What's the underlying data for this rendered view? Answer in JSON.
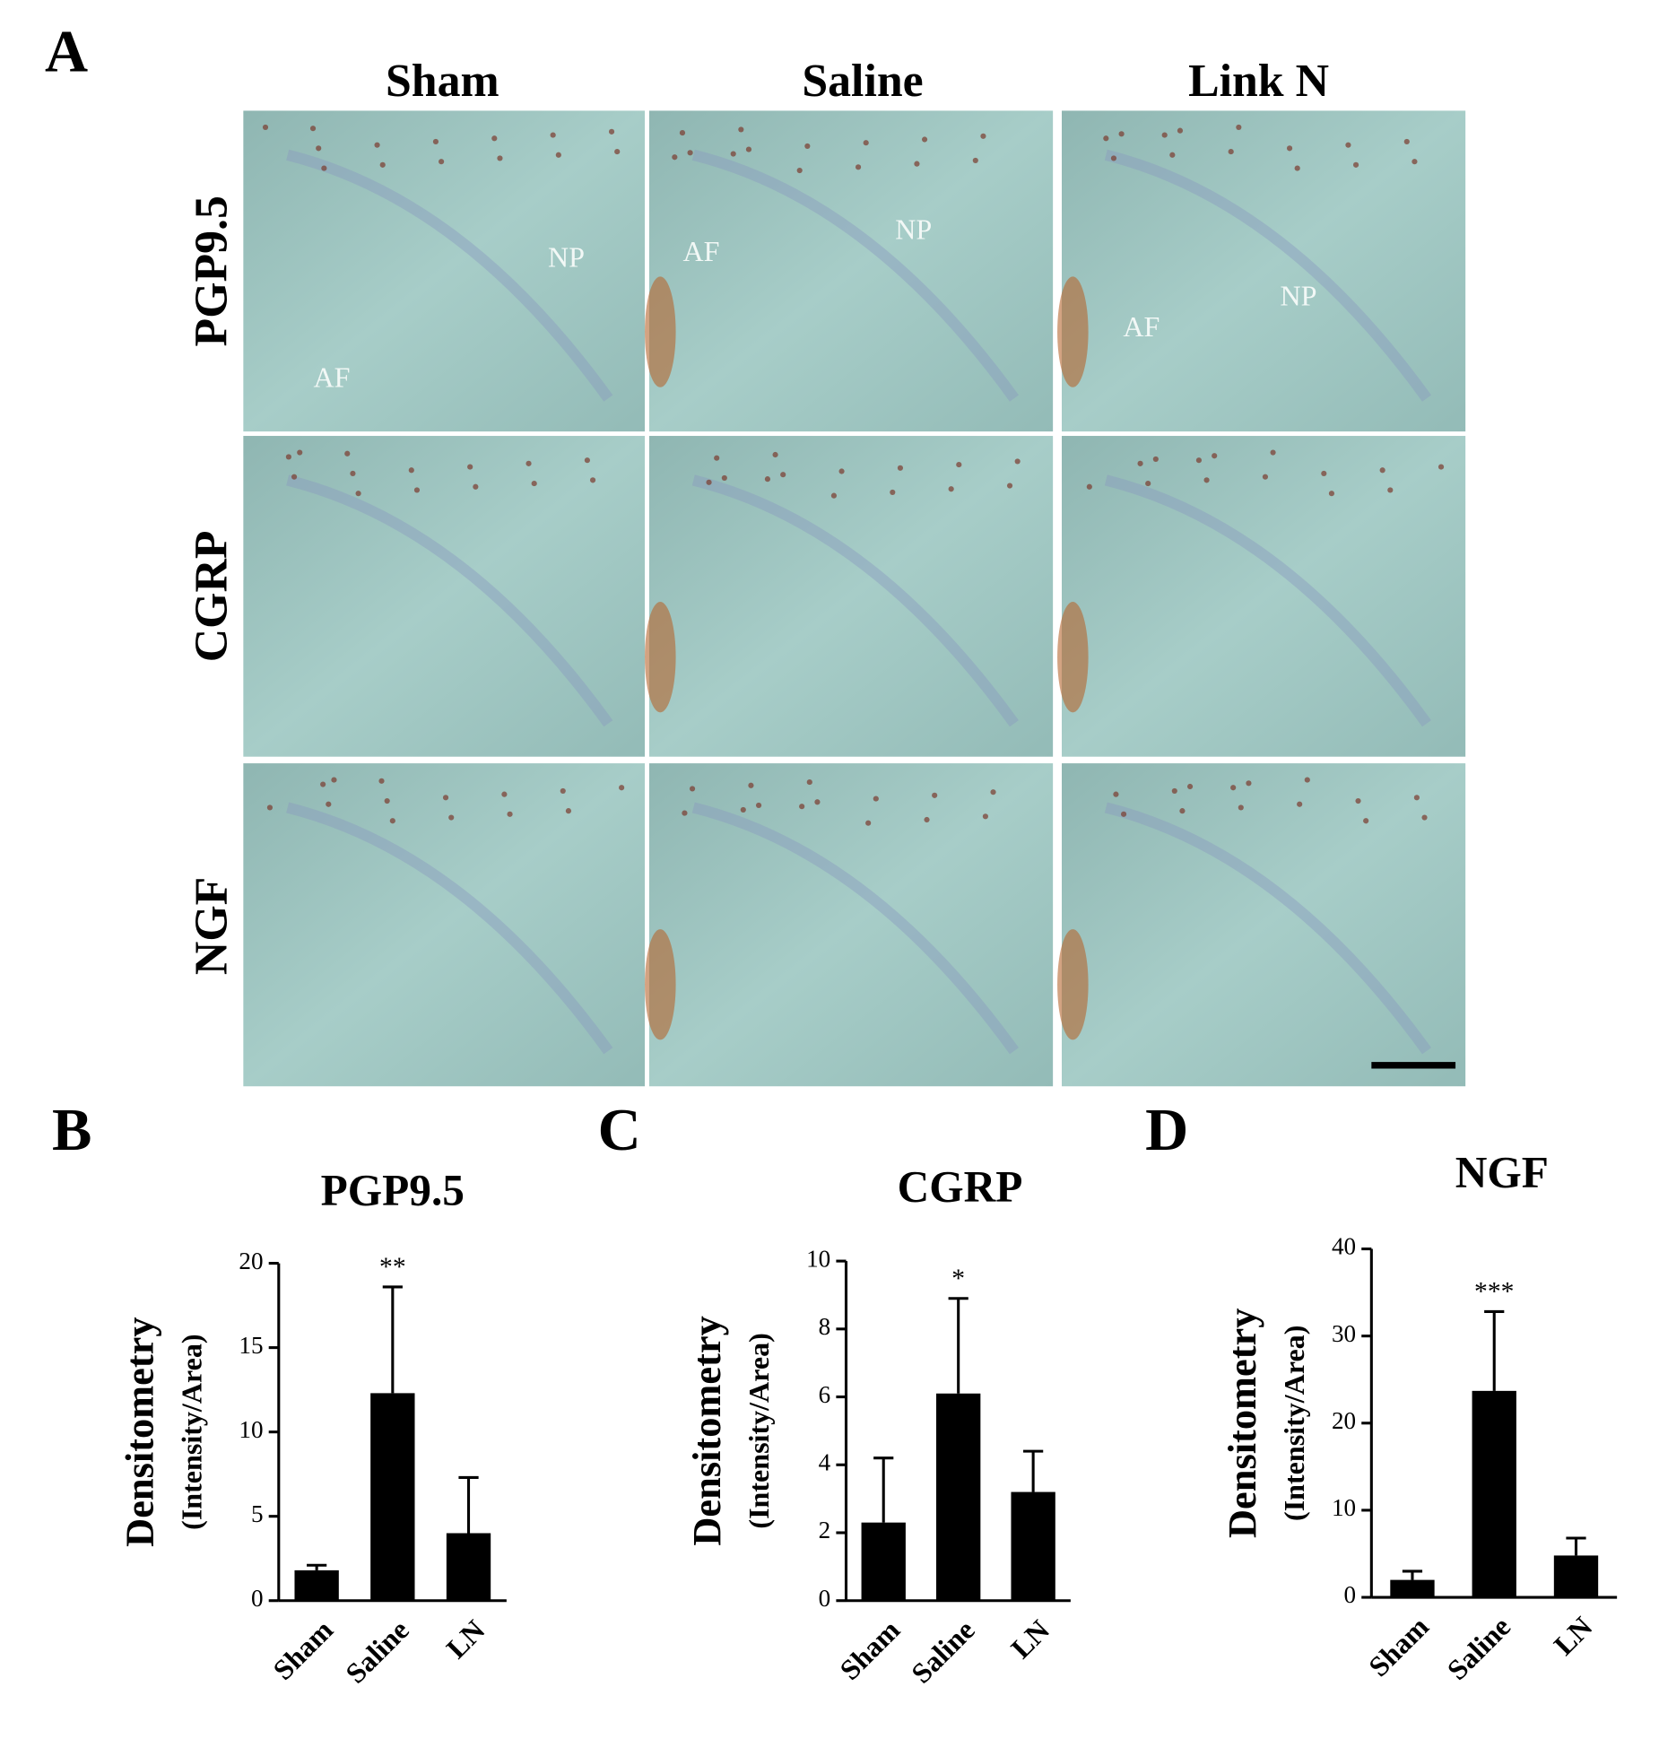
{
  "panel_a": {
    "letter": "A",
    "columns": [
      "Sham",
      "Saline",
      "Link N"
    ],
    "rows": [
      "PGP9.5",
      "CGRP",
      "NGF"
    ],
    "annotations": {
      "sham_pgp": [
        "NP",
        "AF"
      ],
      "saline_pgp": [
        "AF",
        "NP"
      ],
      "linkn_pgp": [
        "AF",
        "NP"
      ]
    }
  },
  "chart_data": [
    {
      "panel": "B",
      "type": "bar",
      "title": "PGP9.5",
      "y_label": "Densitometry",
      "y_sublabel": "(Intensity/Area)",
      "categories": [
        "Sham",
        "Saline",
        "LN"
      ],
      "values": [
        1.8,
        12.3,
        4.0
      ],
      "errors": [
        0.3,
        6.3,
        3.3
      ],
      "significance": [
        null,
        "**",
        null
      ],
      "color": "#000000",
      "ylim": [
        0,
        20
      ],
      "yticks": [
        0,
        5,
        10,
        15,
        20
      ]
    },
    {
      "panel": "C",
      "type": "bar",
      "title": "CGRP",
      "y_label": "Densitometry",
      "y_sublabel": "(Intensity/Area)",
      "categories": [
        "Sham",
        "Saline",
        "LN"
      ],
      "values": [
        2.3,
        6.1,
        3.2
      ],
      "errors": [
        1.9,
        2.8,
        1.2
      ],
      "significance": [
        null,
        "*",
        null
      ],
      "color": "#000000",
      "ylim": [
        0,
        10
      ],
      "yticks": [
        0,
        2,
        4,
        6,
        8,
        10
      ]
    },
    {
      "panel": "D",
      "type": "bar",
      "title": "NGF",
      "y_label": "Densitometry",
      "y_sublabel": "(Intensity/Area)",
      "categories": [
        "Sham",
        "Saline",
        "LN"
      ],
      "values": [
        2.0,
        23.7,
        4.8
      ],
      "errors": [
        1.0,
        9.1,
        2.0
      ],
      "significance": [
        null,
        "***",
        null
      ],
      "color": "#000000",
      "ylim": [
        0,
        40
      ],
      "yticks": [
        0,
        10,
        20,
        30,
        40
      ]
    }
  ]
}
